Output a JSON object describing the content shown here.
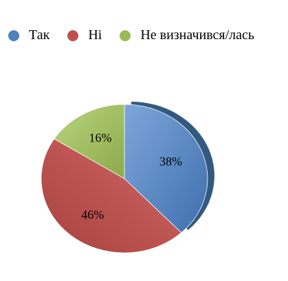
{
  "chart_data": {
    "type": "pie",
    "title": "",
    "categories": [
      "Так",
      "Ні",
      "Не визначився/лась"
    ],
    "values": [
      38,
      46,
      16
    ],
    "labels": [
      "38%",
      "46%",
      "16%"
    ],
    "colors": [
      "#4f81bd",
      "#c0504d",
      "#9bbb59"
    ],
    "legend_position": "top"
  }
}
